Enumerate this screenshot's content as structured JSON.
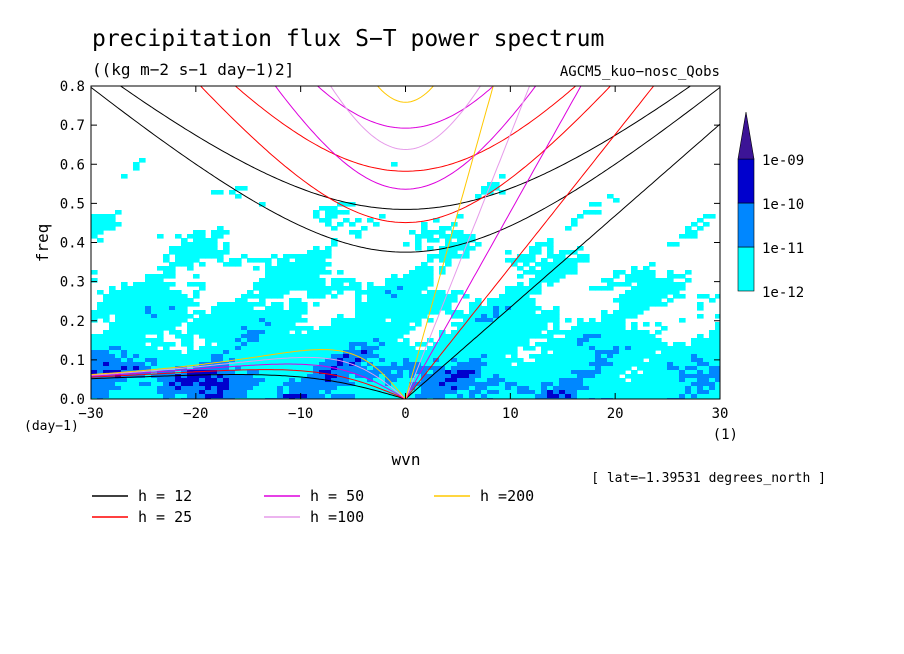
{
  "chart_data": {
    "type": "heatmap",
    "title": "precipitation flux S−T power spectrum",
    "subtitle": "((kg m−2 s−1 day−1)2]",
    "run_label": "AGCM5_kuo−nosc_Qobs",
    "xlabel": "wvn",
    "xunit": "(1)",
    "ylabel": "freq",
    "yunit": "(day−1)",
    "xlim": [
      -30,
      30
    ],
    "ylim": [
      0,
      0.8
    ],
    "x_ticks": [
      -30,
      -20,
      -10,
      0,
      10,
      20,
      30
    ],
    "x_tick_labels": [
      "−30",
      "−20",
      "−10",
      "0",
      "10",
      "20",
      "30"
    ],
    "y_ticks": [
      0,
      0.1,
      0.2,
      0.3,
      0.4,
      0.5,
      0.6,
      0.7,
      0.8
    ],
    "y_tick_labels": [
      "0.0",
      "0.1",
      "0.2",
      "0.3",
      "0.4",
      "0.5",
      "0.6",
      "0.7",
      "0.8"
    ],
    "latitude_note": "[ lat=−1.39531 degrees_north ]",
    "colorbar": {
      "levels": [
        "1e-12",
        "1e-11",
        "1e-10",
        "1e-09"
      ],
      "colors": [
        "#00ffff",
        "#0087ff",
        "#0000cd",
        "#3c1496"
      ]
    },
    "dispersion_curves": [
      {
        "label": "h = 12",
        "h": 12,
        "color": "#000000"
      },
      {
        "label": "h = 25",
        "h": 25,
        "color": "#ff0000"
      },
      {
        "label": "h = 50",
        "h": 50,
        "color": "#dd00dd"
      },
      {
        "label": "h =100",
        "h": 100,
        "color": "#e69bea"
      },
      {
        "label": "h =200",
        "h": 200,
        "color": "#ffc800"
      }
    ]
  }
}
